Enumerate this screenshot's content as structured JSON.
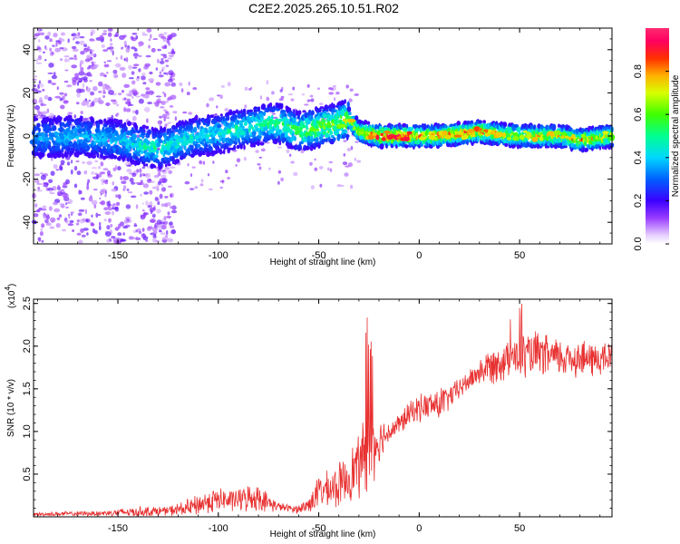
{
  "chart_data": [
    {
      "type": "heatmap",
      "title": "C2E2.2025.265.10.51.R02",
      "xlabel": "Height of straight line (km)",
      "ylabel": "Frequency (Hz)",
      "xlim": [
        -192,
        96
      ],
      "ylim": [
        -50,
        50
      ],
      "x_ticks": [
        -150,
        -100,
        -50,
        0,
        50
      ],
      "y_ticks": [
        -40,
        -20,
        0,
        20,
        40
      ],
      "colorbar": {
        "label": "Normalized spectral amplitude",
        "range": [
          0,
          1
        ],
        "ticks": [
          0.0,
          0.2,
          0.4,
          0.6,
          0.8
        ],
        "tick_labels": [
          "0.0",
          "0.2",
          "0.4",
          "0.6",
          "0.8"
        ]
      },
      "ridge": {
        "x": [
          -192,
          -170,
          -150,
          -130,
          -110,
          -100,
          -90,
          -80,
          -70,
          -60,
          -50,
          -40,
          -35,
          -30,
          -20,
          -10,
          0,
          10,
          20,
          30,
          40,
          50,
          60,
          70,
          80,
          96
        ],
        "center_hz": [
          -1,
          0,
          -2,
          -6,
          0,
          1,
          3,
          5,
          6,
          2,
          4,
          6,
          8,
          2,
          0,
          0,
          0,
          0,
          1,
          2,
          1,
          0,
          0,
          0,
          -2,
          0
        ],
        "peak_amplitude": [
          0.35,
          0.4,
          0.4,
          0.5,
          0.45,
          0.45,
          0.5,
          0.5,
          0.55,
          0.6,
          0.65,
          0.7,
          0.8,
          0.7,
          0.95,
          0.95,
          0.9,
          0.85,
          0.9,
          0.85,
          0.8,
          0.75,
          0.8,
          0.75,
          0.8,
          0.75
        ]
      }
    },
    {
      "type": "line",
      "xlabel": "Height of straight line (km)",
      "ylabel": "SNR (10 * v/v)",
      "multiplier_label": "(x10",
      "multiplier_exp": "4",
      "multiplier_close": ")",
      "xlim": [
        -192,
        96
      ],
      "ylim": [
        0,
        2.55
      ],
      "x_ticks": [
        -150,
        -100,
        -50,
        0,
        50
      ],
      "y_ticks": [
        0.5,
        1.0,
        1.5,
        2.0,
        2.5
      ],
      "y_tick_labels": [
        "0.5",
        "1.0",
        "1.5",
        "2.0",
        "2.5"
      ],
      "series": [
        {
          "name": "SNR",
          "color": "#e83030",
          "x": [
            -192,
            -160,
            -140,
            -125,
            -115,
            -110,
            -105,
            -100,
            -95,
            -90,
            -85,
            -80,
            -75,
            -70,
            -65,
            -60,
            -55,
            -50,
            -45,
            -40,
            -35,
            -30,
            -25,
            -20,
            -15,
            -10,
            -5,
            0,
            5,
            10,
            15,
            20,
            25,
            30,
            35,
            40,
            45,
            50,
            55,
            60,
            65,
            70,
            75,
            80,
            85,
            90,
            96
          ],
          "values": [
            0.03,
            0.04,
            0.06,
            0.07,
            0.1,
            0.14,
            0.18,
            0.2,
            0.19,
            0.2,
            0.22,
            0.23,
            0.16,
            0.12,
            0.1,
            0.09,
            0.14,
            0.3,
            0.32,
            0.36,
            0.48,
            0.6,
            0.78,
            0.9,
            1.0,
            1.08,
            1.2,
            1.28,
            1.3,
            1.32,
            1.4,
            1.5,
            1.6,
            1.7,
            1.76,
            1.82,
            1.86,
            1.88,
            1.9,
            1.9,
            1.88,
            1.86,
            1.87,
            1.86,
            1.84,
            1.85,
            1.86
          ],
          "noise": [
            0.02,
            0.03,
            0.06,
            0.05,
            0.1,
            0.12,
            0.13,
            0.14,
            0.12,
            0.13,
            0.15,
            0.15,
            0.1,
            0.05,
            0.04,
            0.05,
            0.1,
            0.18,
            0.2,
            0.25,
            0.28,
            0.35,
            0.5,
            0.25,
            0.12,
            0.12,
            0.14,
            0.15,
            0.16,
            0.2,
            0.14,
            0.12,
            0.12,
            0.15,
            0.2,
            0.22,
            0.25,
            0.25,
            0.25,
            0.25,
            0.22,
            0.22,
            0.22,
            0.22,
            0.2,
            0.2,
            0.2
          ]
        }
      ]
    }
  ]
}
